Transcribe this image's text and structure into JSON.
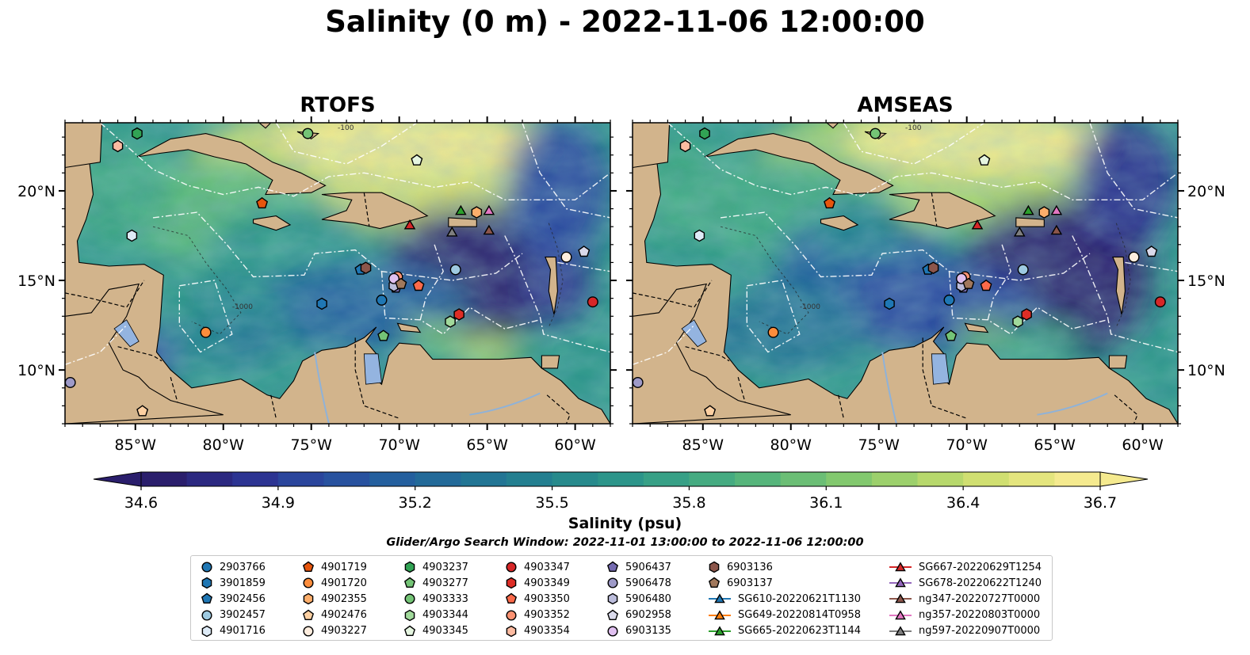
{
  "figure": {
    "title": "Salinity (0 m) - 2022-11-06 12:00:00",
    "colorbar_label": "Salinity (psu)",
    "search_window": "Glider/Argo Search Window: 2022-11-01 13:00:00 to 2022-11-06 12:00:00"
  },
  "chart_data": {
    "type": "heatmap",
    "variable": "Salinity",
    "depth": "0 m",
    "time": "2022-11-06 12:00:00",
    "panels": [
      "RTOFS",
      "AMSEAS"
    ],
    "x_ticks": [
      "85°W",
      "80°W",
      "75°W",
      "70°W",
      "65°W",
      "60°W"
    ],
    "x_tick_values": [
      -85,
      -80,
      -75,
      -70,
      -65,
      -60
    ],
    "y_ticks": [
      "10°N",
      "15°N",
      "20°N"
    ],
    "y_tick_values": [
      10,
      15,
      20
    ],
    "xlim": [
      -89,
      -58
    ],
    "ylim": [
      7,
      23.8
    ],
    "colorbar": {
      "ticks": [
        "34.6",
        "34.9",
        "35.2",
        "35.5",
        "35.8",
        "36.1",
        "36.4",
        "36.7"
      ],
      "range": [
        34.6,
        36.7
      ],
      "extend": "both",
      "colormap": [
        "#2a1e6c",
        "#2c2f8e",
        "#2a4aa0",
        "#245f9e",
        "#227196",
        "#23838e",
        "#2c958a",
        "#3fa883",
        "#5cb879",
        "#82c86e",
        "#aed66a",
        "#d9e173",
        "#f5ea8f"
      ]
    },
    "contour_labels": [
      "-100",
      "-1000"
    ],
    "land_color": "#d2b48c",
    "lake_color": "#94b4e0",
    "stations": [
      {
        "id": "2903766",
        "marker": "circle",
        "color": "#1f77b4",
        "lon": -71.0,
        "lat": 13.9
      },
      {
        "id": "3901859",
        "marker": "hexagon",
        "color": "#1f77b4",
        "lon": -74.4,
        "lat": 13.7
      },
      {
        "id": "3902456",
        "marker": "pentagon",
        "color": "#1f77b4",
        "lon": -72.2,
        "lat": 15.6
      },
      {
        "id": "3902457",
        "marker": "circle",
        "color": "#9ecae1",
        "lon": -66.8,
        "lat": 15.6
      },
      {
        "id": "4901716",
        "marker": "hexagon",
        "color": "#deebf7",
        "lon": -85.2,
        "lat": 17.5
      },
      {
        "id": "4901719",
        "marker": "pentagon",
        "color": "#e6550d",
        "lon": -77.8,
        "lat": 19.3
      },
      {
        "id": "4901720",
        "marker": "circle",
        "color": "#fd8d3c",
        "lon": -81.0,
        "lat": 12.1
      },
      {
        "id": "4902355",
        "marker": "hexagon",
        "color": "#fdae6b",
        "lon": -65.6,
        "lat": 18.8
      },
      {
        "id": "4902476",
        "marker": "pentagon",
        "color": "#fdd0a2",
        "lon": -84.6,
        "lat": 7.7
      },
      {
        "id": "4903227",
        "marker": "circle",
        "color": "#feedde",
        "lon": -60.5,
        "lat": 16.3
      },
      {
        "id": "4903237",
        "marker": "hexagon",
        "color": "#31a354",
        "lon": -84.9,
        "lat": 23.2
      },
      {
        "id": "4903277",
        "marker": "pentagon",
        "color": "#74c476",
        "lon": -70.9,
        "lat": 11.9
      },
      {
        "id": "4903333",
        "marker": "circle",
        "color": "#74c476",
        "lon": -75.2,
        "lat": 23.2
      },
      {
        "id": "4903344",
        "marker": "hexagon",
        "color": "#a1d99b",
        "lon": -67.1,
        "lat": 12.7
      },
      {
        "id": "4903345",
        "marker": "pentagon",
        "color": "#e5f5e0",
        "lon": -69.0,
        "lat": 21.7
      },
      {
        "id": "4903347",
        "marker": "circle",
        "color": "#d62728",
        "lon": -59.0,
        "lat": 13.8
      },
      {
        "id": "4903349",
        "marker": "hexagon",
        "color": "#de2d26",
        "lon": -66.6,
        "lat": 13.1
      },
      {
        "id": "4903350",
        "marker": "pentagon",
        "color": "#fb6a4a",
        "lon": -68.9,
        "lat": 14.7
      },
      {
        "id": "4903352",
        "marker": "circle",
        "color": "#fc9272",
        "lon": -70.1,
        "lat": 15.2
      },
      {
        "id": "4903354",
        "marker": "hexagon",
        "color": "#fcbba1",
        "lon": -86.0,
        "lat": 22.5
      },
      {
        "id": "5906437",
        "marker": "pentagon",
        "color": "#756bb1",
        "lon": -70.2,
        "lat": 14.6
      },
      {
        "id": "5906478",
        "marker": "circle",
        "color": "#9e9ac8",
        "lon": -88.7,
        "lat": 9.3
      },
      {
        "id": "5906480",
        "marker": "hexagon",
        "color": "#bcbddc",
        "lon": -70.3,
        "lat": 14.7
      },
      {
        "id": "6902958",
        "marker": "pentagon",
        "color": "#dadaeb",
        "lon": -59.5,
        "lat": 16.6
      },
      {
        "id": "6903135",
        "marker": "circle",
        "color": "#e0c0f0",
        "lon": -70.3,
        "lat": 15.1
      },
      {
        "id": "6903136",
        "marker": "hexagon",
        "color": "#8c564b",
        "lon": -71.9,
        "lat": 15.7
      },
      {
        "id": "6903137",
        "marker": "pentagon",
        "color": "#a1785c",
        "lon": -69.9,
        "lat": 14.8
      },
      {
        "id": "SG610-20220621T1130",
        "marker": "triangle",
        "color": "#1f77b4",
        "lon": null,
        "lat": null
      },
      {
        "id": "SG649-20220814T0958",
        "marker": "triangle",
        "color": "#ff7f0e",
        "lon": null,
        "lat": null
      },
      {
        "id": "SG665-20220623T1144",
        "marker": "triangle",
        "color": "#2ca02c",
        "lon": -66.5,
        "lat": 18.9
      },
      {
        "id": "SG667-20220629T1254",
        "marker": "triangle",
        "color": "#d62728",
        "lon": -69.4,
        "lat": 18.1
      },
      {
        "id": "SG678-20220622T1240",
        "marker": "triangle",
        "color": "#9467bd",
        "lon": null,
        "lat": null
      },
      {
        "id": "ng347-20220727T0000",
        "marker": "triangle",
        "color": "#8c564b",
        "lon": -64.9,
        "lat": 17.8
      },
      {
        "id": "ng357-20220803T0000",
        "marker": "triangle",
        "color": "#e377c2",
        "lon": -64.9,
        "lat": 18.9
      },
      {
        "id": "ng597-20220907T0000",
        "marker": "triangle",
        "color": "#7f7f7f",
        "lon": -67.0,
        "lat": 17.7
      }
    ]
  }
}
